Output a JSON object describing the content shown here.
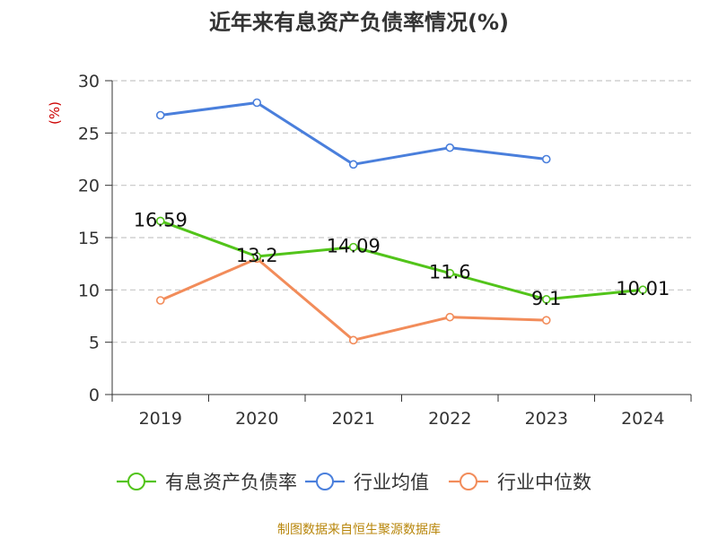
{
  "chart_data": {
    "type": "line",
    "title": "近年来有息资产负债率情况(%)",
    "ylabel": "(%)",
    "xlabel": "",
    "categories": [
      "2019",
      "2020",
      "2021",
      "2022",
      "2023",
      "2024"
    ],
    "ylim": [
      0,
      30
    ],
    "yticks": [
      0,
      5,
      10,
      15,
      20,
      25,
      30
    ],
    "grid": true,
    "legend_position": "bottom",
    "series": [
      {
        "name": "有息资产负债率",
        "color": "#52c41a",
        "values": [
          16.59,
          13.2,
          14.09,
          11.6,
          9.1,
          10.01
        ],
        "labels": [
          "16.59",
          "13.2",
          "14.09",
          "11.6",
          "9.1",
          "10.01"
        ]
      },
      {
        "name": "行业均值",
        "color": "#4a7fdc",
        "values": [
          26.7,
          27.9,
          22.0,
          23.6,
          22.5,
          null
        ]
      },
      {
        "name": "行业中位数",
        "color": "#f28c5a",
        "values": [
          9.0,
          13.0,
          5.2,
          7.4,
          7.1,
          null
        ]
      }
    ],
    "source": "制图数据来自恒生聚源数据库"
  }
}
